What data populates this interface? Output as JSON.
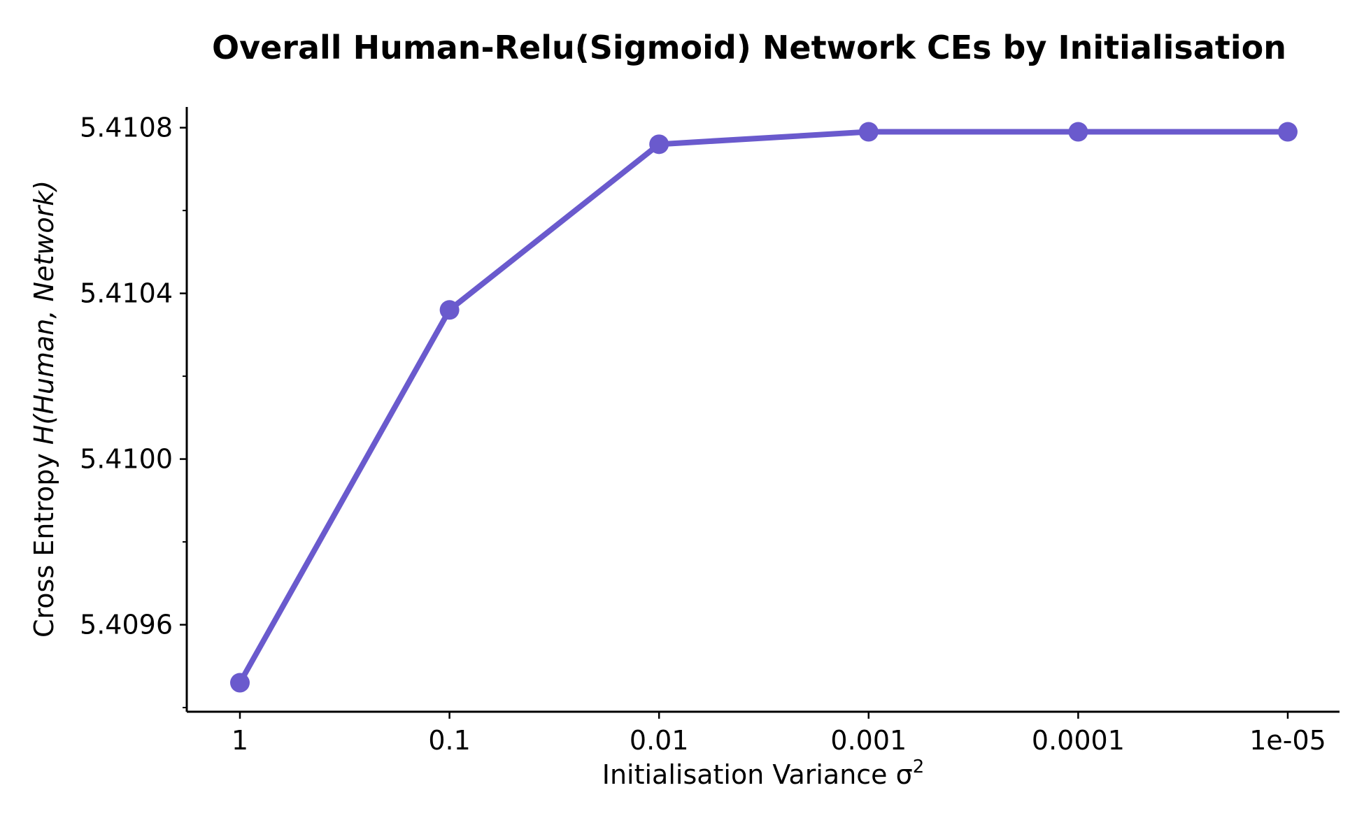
{
  "chart_data": {
    "type": "line",
    "title": "Overall Human-Relu(Sigmoid) Network CEs by Initialisation",
    "xlabel": "Initialisation Variance σ",
    "xlabel_sup": "2",
    "ylabel_prefix": "Cross Entropy ",
    "ylabel_math": "H(Human, Network)",
    "categories": [
      "1",
      "0.1",
      "0.01",
      "0.001",
      "0.0001",
      "1e-05"
    ],
    "series": [
      {
        "values": [
          5.40946,
          5.41036,
          5.41076,
          5.41079,
          5.41079,
          5.41079
        ]
      }
    ],
    "ylim": [
      5.40939,
      5.41085
    ],
    "yticks": [
      5.4096,
      5.41,
      5.4104,
      5.4108
    ],
    "ytick_labels": [
      "5.4096",
      "5.4100",
      "5.4104",
      "5.4108"
    ],
    "yminor_ticks": [
      5.4094,
      5.4098,
      5.4102,
      5.4106
    ],
    "grid": false,
    "legend": "none",
    "line_color": "#6a5acd",
    "axis_color": "#000000"
  }
}
